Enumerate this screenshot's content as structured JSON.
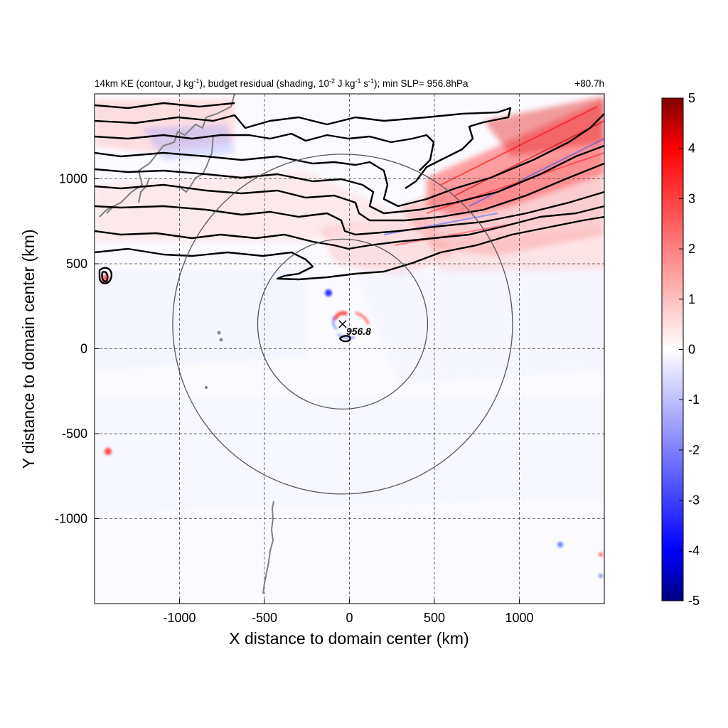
{
  "chart_data": {
    "type": "contour",
    "title": "14km KE (contour, J kg",
    "title_sup1": "-1",
    "title_mid": "), budget residual (shading, 10",
    "title_sup2": "-2",
    "title_mid2": " J kg",
    "title_sup3": "-1",
    "title_mid3": " s",
    "title_sup4": "-1",
    "title_end": "); min SLP= 956.8hPa",
    "time_label": "+80.7h",
    "xlabel": "X distance to domain center (km)",
    "ylabel": "Y distance to domain center (km)",
    "xlim": [
      -1500,
      1500
    ],
    "ylim": [
      -1500,
      1500
    ],
    "xticks": [
      -1000,
      -500,
      0,
      500,
      1000
    ],
    "yticks": [
      -1000,
      -500,
      0,
      500,
      1000
    ],
    "xtick_labels": [
      "-1000",
      "-500",
      "0",
      "500",
      "1000"
    ],
    "ytick_labels": [
      "-1000",
      "-500",
      "0",
      "500",
      "1000"
    ],
    "grid": true,
    "colorbar": {
      "min": -5,
      "max": 5,
      "ticks": [
        5,
        4,
        3,
        2,
        1,
        0,
        -1,
        -2,
        -3,
        -4,
        -5
      ],
      "tick_labels": [
        "5",
        "4",
        "3",
        "2",
        "1",
        "0",
        "-1",
        "-2",
        "-3",
        "-4",
        "-5"
      ],
      "colors": [
        "#000080",
        "#0000ff",
        "#ffffff",
        "#ff0000",
        "#800000"
      ]
    },
    "storm_center": {
      "x": -40,
      "y": 145,
      "label": "956.8"
    },
    "range_circles_km": [
      500,
      1000
    ],
    "colors": {
      "contour": "#000000",
      "coastline": "#808080",
      "circle": "#555555",
      "grid": "#444444"
    }
  }
}
